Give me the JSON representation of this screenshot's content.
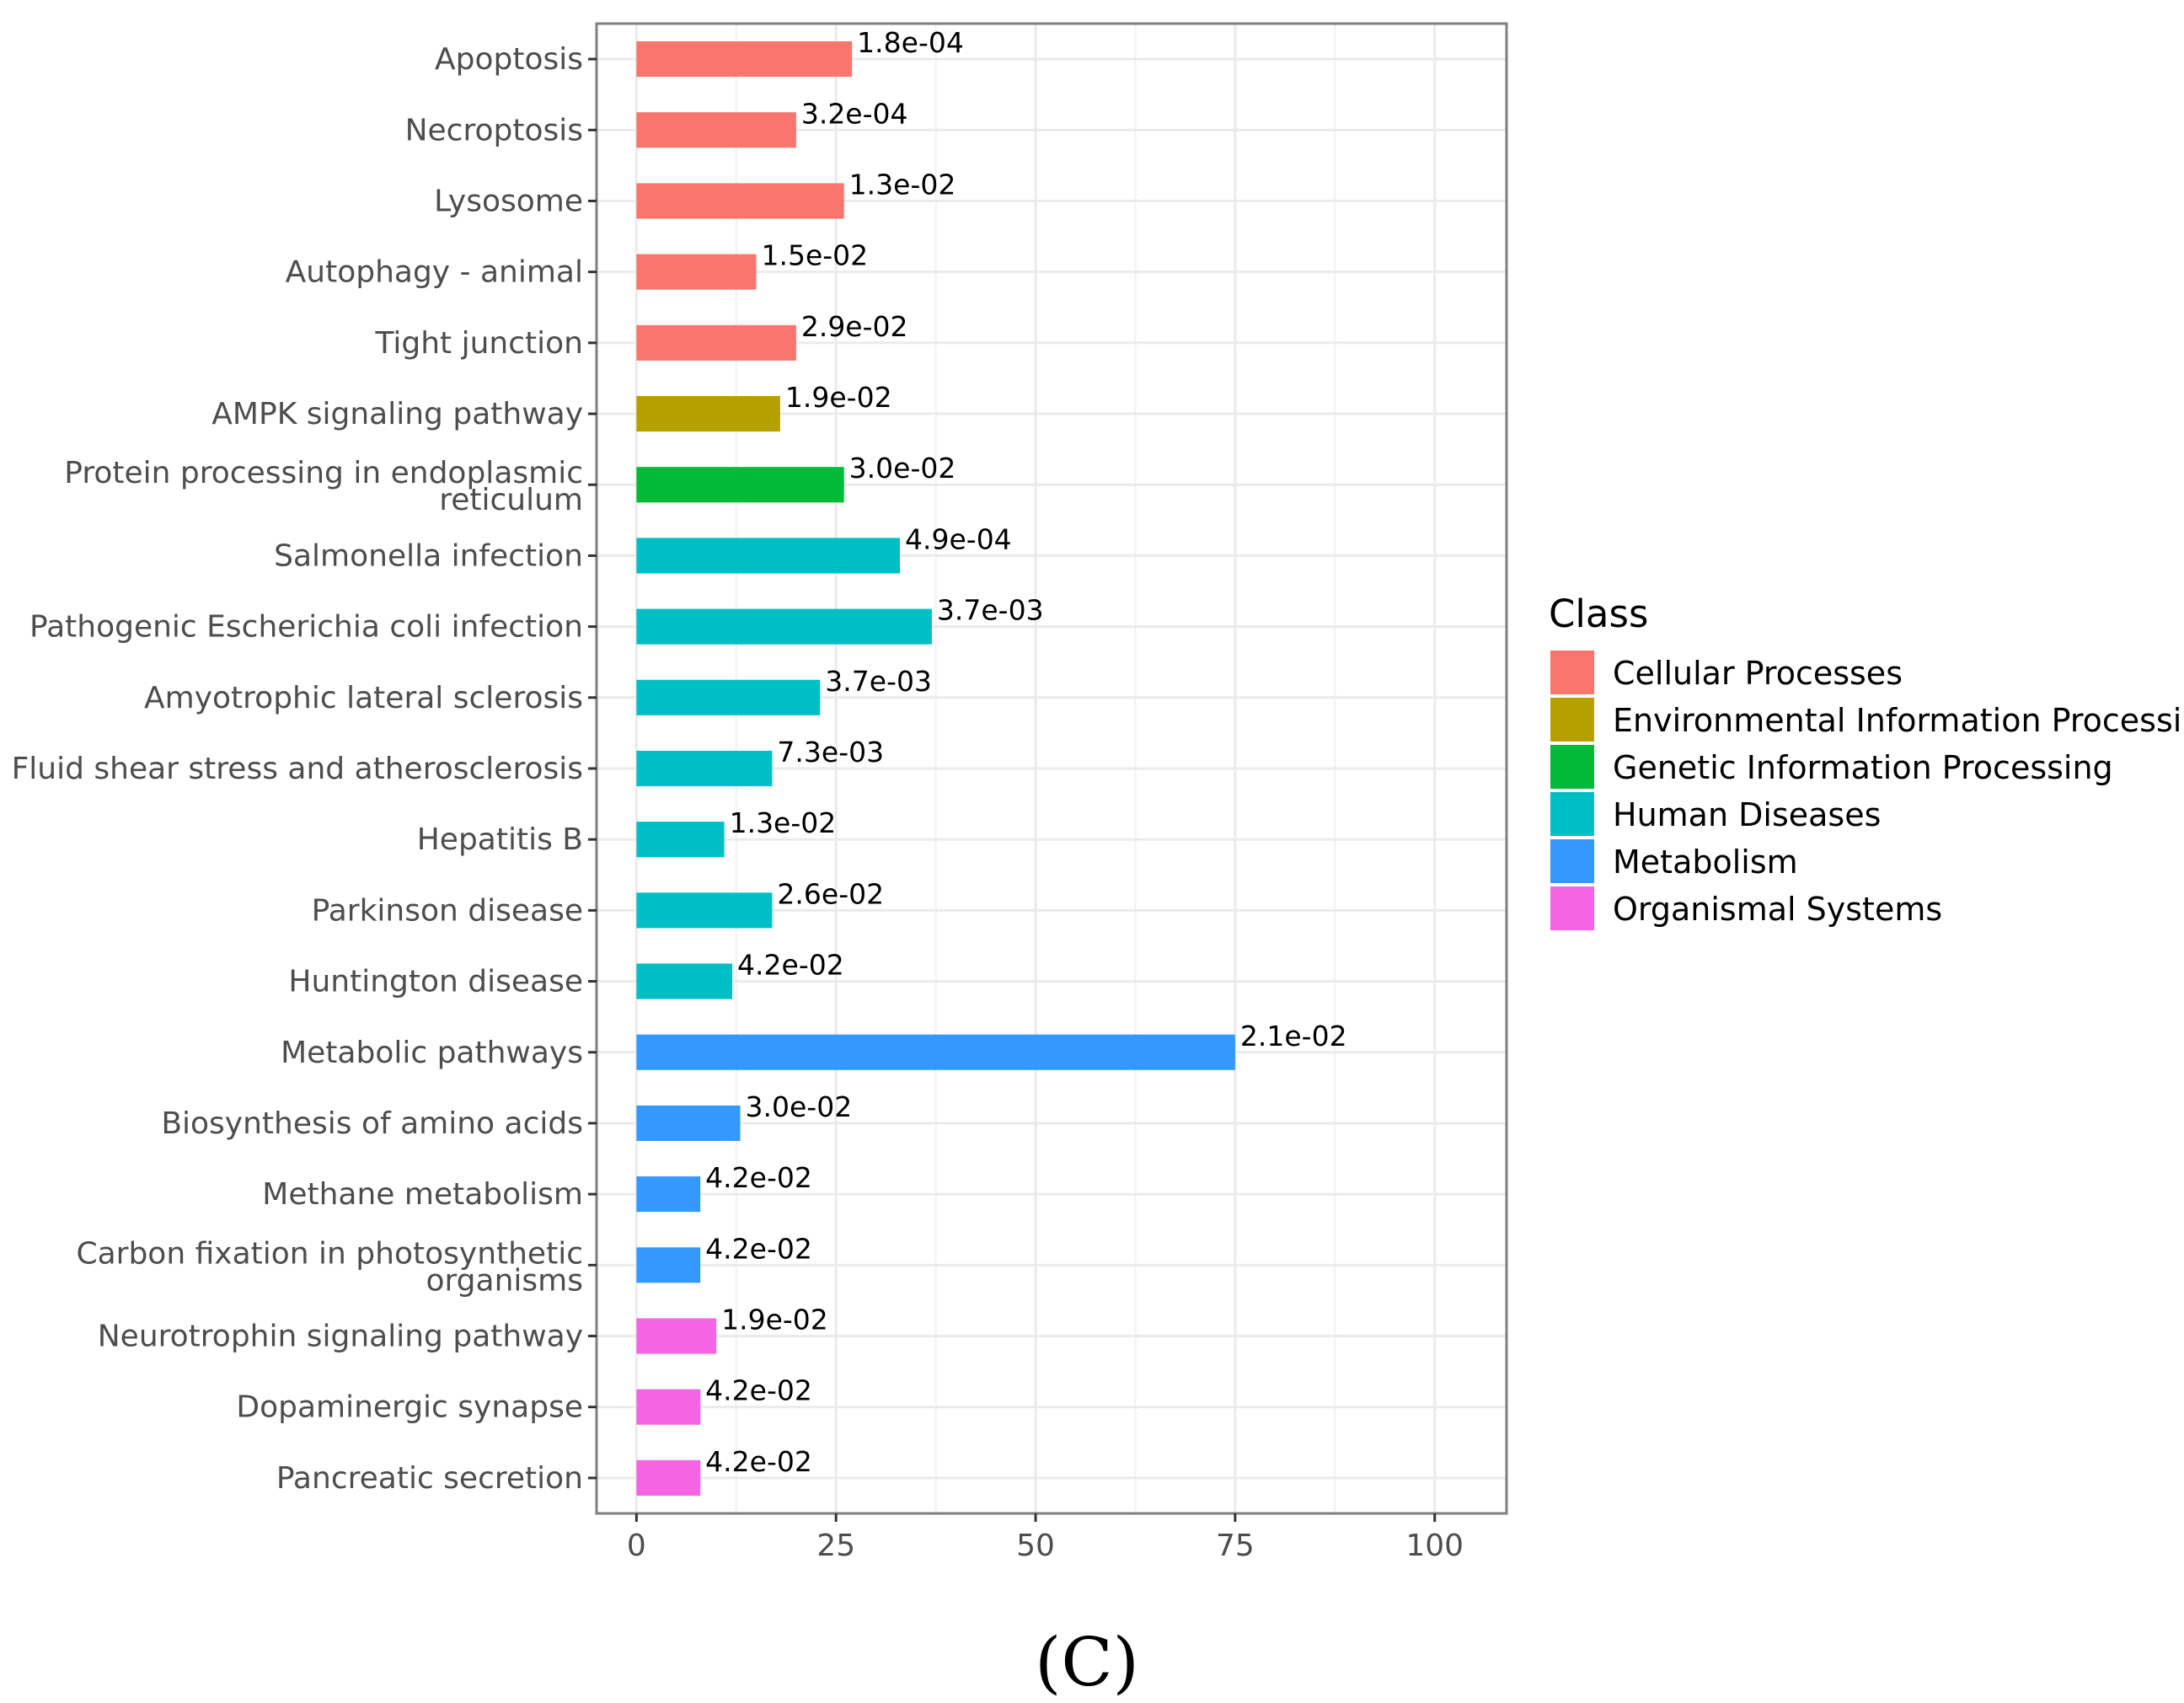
{
  "chart_data": {
    "type": "bar",
    "orientation": "horizontal",
    "categories": [
      "Apoptosis",
      "Necroptosis",
      "Lysosome",
      "Autophagy - animal",
      "Tight junction",
      "AMPK signaling pathway",
      "Protein processing in endoplasmic reticulum",
      "Salmonella infection",
      "Pathogenic Escherichia coli infection",
      "Amyotrophic lateral sclerosis",
      "Fluid shear stress and atherosclerosis",
      "Hepatitis B",
      "Parkinson disease",
      "Huntington disease",
      "Metabolic pathways",
      "Biosynthesis of amino acids",
      "Methane metabolism",
      "Carbon fixation in photosynthetic organisms",
      "Neurotrophin signaling pathway",
      "Dopaminergic synapse",
      "Pancreatic secretion"
    ],
    "values": [
      27,
      20,
      26,
      15,
      20,
      18,
      26,
      33,
      37,
      23,
      17,
      11,
      17,
      12,
      75,
      13,
      8,
      8,
      10,
      8,
      8
    ],
    "data_labels": [
      "1.8e-04",
      "3.2e-04",
      "1.3e-02",
      "1.5e-02",
      "2.9e-02",
      "1.9e-02",
      "3.0e-02",
      "4.9e-04",
      "3.7e-03",
      "3.7e-03",
      "7.3e-03",
      "1.3e-02",
      "2.6e-02",
      "4.2e-02",
      "2.1e-02",
      "3.0e-02",
      "4.2e-02",
      "4.2e-02",
      "1.9e-02",
      "4.2e-02",
      "4.2e-02"
    ],
    "classes": [
      "Cellular Processes",
      "Cellular Processes",
      "Cellular Processes",
      "Cellular Processes",
      "Cellular Processes",
      "Environmental Information Processing",
      "Genetic Information Processing",
      "Human Diseases",
      "Human Diseases",
      "Human Diseases",
      "Human Diseases",
      "Human Diseases",
      "Human Diseases",
      "Human Diseases",
      "Metabolism",
      "Metabolism",
      "Metabolism",
      "Metabolism",
      "Organismal Systems",
      "Organismal Systems",
      "Organismal Systems"
    ],
    "xlim": [
      -5,
      109
    ],
    "x_ticks": [
      0,
      25,
      50,
      75,
      100
    ],
    "grid": true,
    "legend": {
      "title": "Class",
      "position": "right",
      "entries": [
        {
          "name": "Cellular Processes",
          "color": "#F8766D"
        },
        {
          "name": "Environmental Information Processing",
          "color": "#B79F00"
        },
        {
          "name": "Genetic Information Processing",
          "color": "#00BA38"
        },
        {
          "name": "Human Diseases",
          "color": "#00BFC4"
        },
        {
          "name": "Metabolism",
          "color": "#3399FF"
        },
        {
          "name": "Organismal Systems",
          "color": "#F564E3"
        }
      ]
    },
    "title": "",
    "xlabel": "",
    "ylabel": ""
  },
  "panel_label": "(C)"
}
